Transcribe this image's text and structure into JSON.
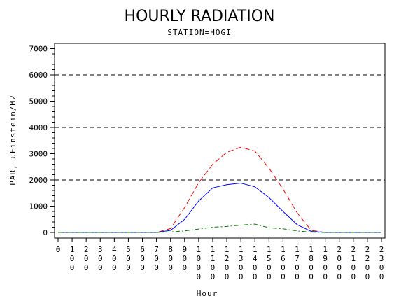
{
  "chart_data": {
    "type": "line",
    "title": "HOURLY RADIATION",
    "subtitle": "STATION=HOGI",
    "xlabel": "Hour",
    "ylabel": "PAR, uEinstein/M2",
    "ylim": [
      0,
      7200
    ],
    "yticks": [
      0,
      1000,
      2000,
      3000,
      4000,
      5000,
      6000,
      7000
    ],
    "reference_lines": [
      2000,
      4000,
      6000
    ],
    "x_tick_labels": [
      "0",
      "100",
      "200",
      "300",
      "400",
      "500",
      "600",
      "700",
      "800",
      "900",
      "1000",
      "1100",
      "1200",
      "1300",
      "1400",
      "1500",
      "1600",
      "1700",
      "1800",
      "1900",
      "2000",
      "2100",
      "2200",
      "2300"
    ],
    "x": [
      0,
      1,
      2,
      3,
      4,
      5,
      6,
      7,
      8,
      9,
      10,
      11,
      12,
      13,
      14,
      15,
      16,
      17,
      18,
      19,
      20,
      21,
      22,
      23
    ],
    "series": [
      {
        "color": "#ff0000",
        "dash": "dashed",
        "values": [
          0,
          0,
          0,
          0,
          0,
          0,
          0,
          0,
          150,
          950,
          1900,
          2600,
          3050,
          3250,
          3100,
          2450,
          1650,
          750,
          80,
          0,
          0,
          0,
          0,
          0
        ]
      },
      {
        "color": "#0000ff",
        "dash": "solid",
        "values": [
          0,
          0,
          0,
          0,
          0,
          0,
          0,
          0,
          80,
          500,
          1200,
          1700,
          1820,
          1880,
          1740,
          1330,
          800,
          300,
          40,
          0,
          0,
          0,
          0,
          0
        ]
      },
      {
        "color": "#008000",
        "dash": "dash-dot",
        "values": [
          0,
          0,
          0,
          0,
          0,
          0,
          0,
          0,
          20,
          60,
          130,
          200,
          230,
          280,
          320,
          180,
          140,
          60,
          10,
          0,
          0,
          0,
          0,
          0
        ]
      }
    ]
  }
}
